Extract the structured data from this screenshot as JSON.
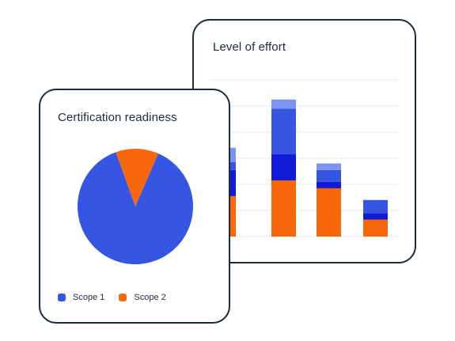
{
  "colors": {
    "scope1": "#3456e3",
    "scope2": "#f8670a",
    "dark_blue": "#0f1bd6",
    "light_blue": "#7b93f1",
    "grid": "#e4e8ee",
    "border": "#1b2b3a"
  },
  "chart_data": [
    {
      "type": "bar",
      "title": "Level of effort",
      "stacked": true,
      "xlabel": "",
      "ylabel": "",
      "ylim": [
        0,
        6
      ],
      "grid": true,
      "categories": [
        "",
        "",
        "",
        ""
      ],
      "series": [
        {
          "color": "#f8670a",
          "values": [
            1.55,
            2.15,
            1.85,
            0.65
          ]
        },
        {
          "color": "#0f1bd6",
          "values": [
            1.0,
            1.0,
            0.25,
            0.25
          ]
        },
        {
          "color": "#3456e3",
          "values": [
            0.3,
            1.75,
            0.45,
            0.5
          ]
        },
        {
          "color": "#7b93f1",
          "values": [
            0.55,
            0.35,
            0.25,
            0.0
          ]
        }
      ]
    },
    {
      "type": "pie",
      "title": "Certification readiness",
      "legend_position": "bottom-left",
      "slices": [
        {
          "name": "Scope 1",
          "value": 88,
          "color": "#3456e3"
        },
        {
          "name": "Scope 2",
          "value": 12,
          "color": "#f8670a"
        }
      ]
    }
  ],
  "legend": {
    "scope1_label": "Scope 1",
    "scope2_label": "Scope 2"
  }
}
